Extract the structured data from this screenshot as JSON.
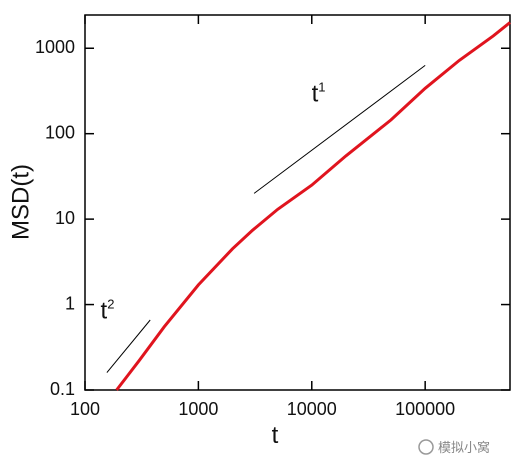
{
  "chart_data": {
    "type": "line",
    "xlabel": "t",
    "ylabel": "MSD(t)",
    "xscale": "log",
    "yscale": "log",
    "xlim": [
      100,
      560000
    ],
    "ylim": [
      0.1,
      2450
    ],
    "xticks": [
      100,
      1000,
      10000,
      100000
    ],
    "yticks": [
      0.1,
      1,
      10,
      100,
      1000
    ],
    "series": [
      {
        "color": "#e0141e",
        "width": 3,
        "x": [
          190,
          300,
          500,
          1000,
          2000,
          3000,
          5000,
          10000,
          20000,
          50000,
          100000,
          200000,
          400000,
          560000
        ],
        "values": [
          0.1,
          0.22,
          0.55,
          1.7,
          4.5,
          7.4,
          13,
          25,
          55,
          145,
          340,
          720,
          1400,
          2000
        ]
      },
      {
        "color": "#000000",
        "width": 1,
        "x": [
          156,
          376
        ],
        "values": [
          0.16,
          0.66
        ],
        "label": "t",
        "label_sup": "2"
      },
      {
        "color": "#000000",
        "width": 1,
        "x": [
          3100,
          100000
        ],
        "values": [
          20,
          630
        ],
        "label": "t",
        "label_sup": "1"
      }
    ]
  },
  "watermark": "模拟小窝"
}
